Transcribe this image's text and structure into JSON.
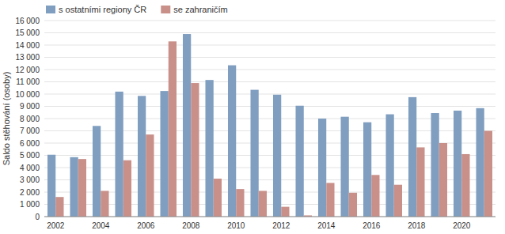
{
  "chart_data": {
    "type": "bar",
    "ylabel": "Saldo stěhování (osoby)",
    "categories": [
      "2002",
      null,
      "2004",
      null,
      "2006",
      null,
      "2008",
      null,
      "2010",
      null,
      "2012",
      null,
      "2014",
      null,
      "2016",
      null,
      "2018",
      null,
      "2020",
      null
    ],
    "series": [
      {
        "name": "s ostatními regiony ČR",
        "color": "#7f9ec0",
        "values": [
          5050,
          4850,
          7400,
          10200,
          9850,
          10250,
          14900,
          11150,
          12350,
          10350,
          9950,
          9050,
          8000,
          8150,
          7700,
          8350,
          9750,
          8450,
          8650,
          8850
        ]
      },
      {
        "name": "se zahraničím",
        "color": "#c9908a",
        "values": [
          1600,
          4700,
          2100,
          4600,
          6700,
          14300,
          10900,
          3100,
          2250,
          2100,
          800,
          100,
          2750,
          1950,
          3400,
          2600,
          5650,
          6000,
          5100,
          7000
        ]
      }
    ],
    "ylim": [
      0,
      16000
    ],
    "yticks": [
      0,
      {
        "value": 1000,
        "label": "1 000"
      },
      {
        "value": 2000,
        "label": "2 000"
      },
      {
        "value": 3000,
        "label": "3 000"
      },
      {
        "value": 4000,
        "label": "4 000"
      },
      {
        "value": 5000,
        "label": "5 000"
      },
      {
        "value": 6000,
        "label": "6 000"
      },
      {
        "value": 7000,
        "label": "7 000"
      },
      {
        "value": 8000,
        "label": "8 000"
      },
      {
        "value": 9000,
        "label": "9 000"
      },
      {
        "value": 10000,
        "label": "10 000"
      },
      {
        "value": 11000,
        "label": "11 000"
      },
      {
        "value": 12000,
        "label": "12 000"
      },
      {
        "value": 13000,
        "label": "13 000"
      },
      {
        "value": 14000,
        "label": "14 000"
      },
      {
        "value": 15000,
        "label": "15 000"
      },
      {
        "value": 16000,
        "label": "16 000"
      }
    ],
    "grid": true,
    "legend": "upper left"
  }
}
